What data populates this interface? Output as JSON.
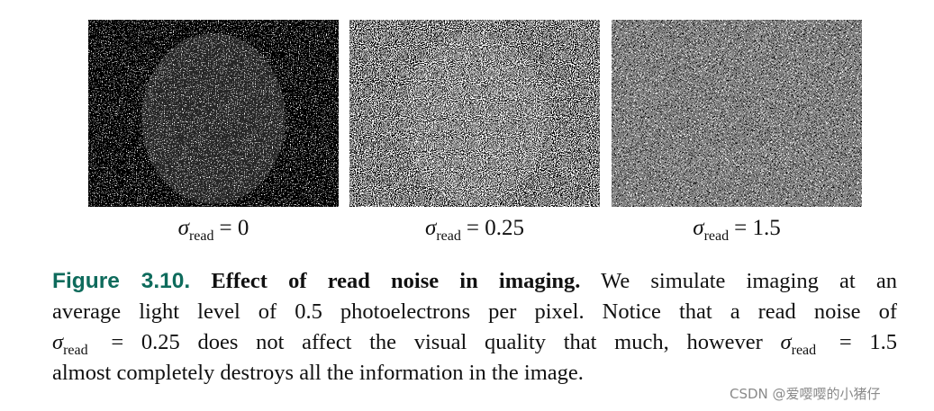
{
  "panels": [
    {
      "symbol": "σ",
      "subscript": "read",
      "value": "= 0"
    },
    {
      "symbol": "σ",
      "subscript": "read",
      "value": "= 0.25"
    },
    {
      "symbol": "σ",
      "subscript": "read",
      "value": "= 1.5"
    }
  ],
  "caption": {
    "label": "Figure 3.10.",
    "title": "Effect of read noise in imaging.",
    "line1": "We simulate imaging at an",
    "line2": "average light level of 0.5 photoelectrons per pixel. Notice that a read noise of",
    "line3": [
      {
        "symbol": "σ",
        "subscript": "read"
      },
      "= 0.25 does not affect the visual quality that much, however",
      {
        "symbol": "σ",
        "subscript": "read"
      },
      "= 1.5"
    ],
    "line4": "almost completely destroys all the information in the image."
  },
  "watermark": "CSDN @爱嘤嘤的小猪仔"
}
